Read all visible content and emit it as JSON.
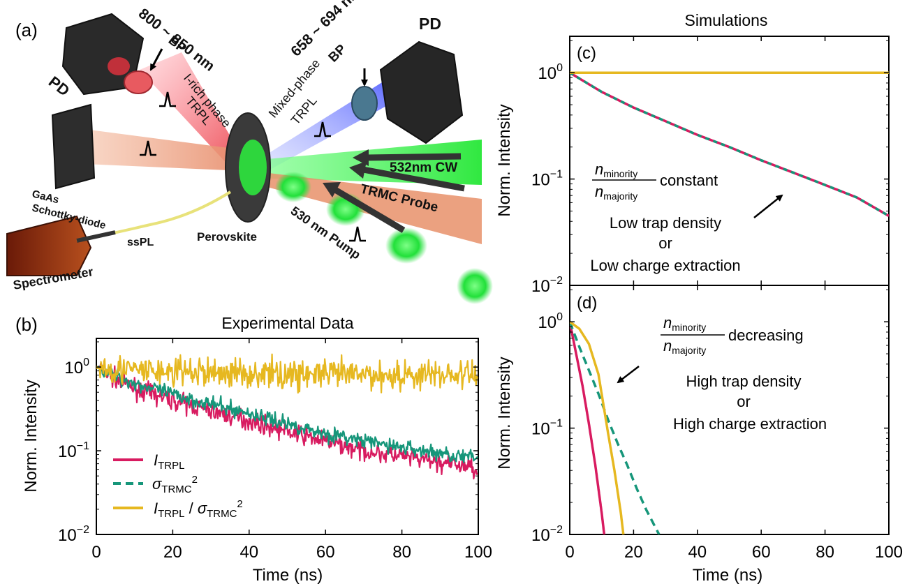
{
  "colors": {
    "trpl": "#d81b60",
    "trmc": "#16967a",
    "ratio": "#e6b820",
    "axis": "#000000",
    "laser_green": "#22e03a",
    "laser_red": "#e8303a",
    "laser_blue": "#3a48e8",
    "probe_orange": "#e8906a"
  },
  "panel_a": {
    "label": "(a)",
    "bp_red": "800 ~ 850 nm",
    "bp_red_sub": "BP",
    "bp_blue": "658 ~ 694 nm",
    "bp_blue_sub": "BP",
    "pd_left": "PD",
    "pd_right": "PD",
    "i_rich_line1": "I-rich phase",
    "i_rich_line2": "TRPL",
    "mixed_line1": "Mixed-phase",
    "mixed_line2": "TRPL",
    "cw": "532nm CW",
    "probe": "TRMC Probe",
    "pump": "530 nm Pump",
    "gaas_line1": "GaAs",
    "gaas_line2": "Schottky-diode",
    "sspl": "ssPL",
    "perovskite": "Perovskite",
    "spectrometer": "Spectrometer"
  },
  "panel_b": {
    "label": "(b)",
    "title": "Experimental Data",
    "xlabel": "Time (ns)",
    "ylabel": "Norm. Intensity",
    "legend": {
      "trpl_main": "I",
      "trpl_sub": "TRPL",
      "trmc_main": "σ",
      "trmc_sub": "TRMC",
      "trmc_sup": "2",
      "ratio_main1": "I",
      "ratio_sub1": "TRPL",
      "ratio_mid": " / ",
      "ratio_main2": "σ",
      "ratio_sub2": "TRMC",
      "ratio_sup": "2"
    }
  },
  "panel_c": {
    "label": "(c)",
    "title": "Simulations",
    "ylabel": "Norm. Intensity",
    "frac_num_main": "n",
    "frac_num_sub": "minority",
    "frac_den_main": "n",
    "frac_den_sub": "majority",
    "frac_word": "constant",
    "line1": "Low trap density",
    "line2": "or",
    "line3": "Low charge extraction"
  },
  "panel_d": {
    "label": "(d)",
    "xlabel": "Time (ns)",
    "ylabel": "Norm. Intensity",
    "frac_num_main": "n",
    "frac_num_sub": "minority",
    "frac_den_main": "n",
    "frac_den_sub": "majority",
    "frac_word": "decreasing",
    "line1": "High trap density",
    "line2": "or",
    "line3": "High charge extraction"
  },
  "axis_ticks": {
    "x": [
      "0",
      "20",
      "40",
      "60",
      "80",
      "100"
    ],
    "y_base": "10",
    "y_exp": [
      "0",
      "−1",
      "−2"
    ]
  },
  "chart_data": [
    {
      "type": "line",
      "panel": "b",
      "title": "Experimental Data",
      "xlabel": "Time (ns)",
      "ylabel": "Norm. Intensity",
      "xlim": [
        0,
        100
      ],
      "ylim": [
        0.01,
        2.2
      ],
      "yscale": "log",
      "legend_position": "lower-left",
      "series": [
        {
          "name": "I_TRPL",
          "x": [
            0,
            1,
            5,
            10,
            20,
            30,
            40,
            50,
            60,
            70,
            80,
            90,
            100
          ],
          "values": [
            1.0,
            0.95,
            0.72,
            0.56,
            0.4,
            0.3,
            0.23,
            0.17,
            0.13,
            0.1,
            0.085,
            0.072,
            0.062
          ]
        },
        {
          "name": "σ_TRMC^2",
          "x": [
            0,
            1,
            5,
            10,
            20,
            30,
            40,
            50,
            60,
            70,
            80,
            90,
            100
          ],
          "values": [
            1.0,
            0.96,
            0.78,
            0.64,
            0.47,
            0.36,
            0.28,
            0.21,
            0.16,
            0.13,
            0.11,
            0.093,
            0.08
          ]
        },
        {
          "name": "I_TRPL / σ_TRMC^2",
          "x": [
            0,
            1,
            10,
            20,
            30,
            40,
            50,
            60,
            70,
            80,
            90,
            100
          ],
          "values": [
            1.0,
            1.0,
            0.9,
            0.87,
            0.86,
            0.84,
            0.82,
            0.82,
            0.8,
            0.8,
            0.82,
            0.8
          ]
        }
      ]
    },
    {
      "type": "line",
      "panel": "c",
      "title": "Simulations",
      "ylabel": "Norm. Intensity",
      "xlim": [
        0,
        100
      ],
      "ylim": [
        0.01,
        2.2
      ],
      "yscale": "log",
      "series": [
        {
          "name": "I_TRPL",
          "x": [
            0,
            10,
            20,
            30,
            40,
            50,
            60,
            70,
            80,
            90,
            100
          ],
          "values": [
            1.0,
            0.66,
            0.47,
            0.35,
            0.26,
            0.2,
            0.15,
            0.115,
            0.088,
            0.067,
            0.045
          ]
        },
        {
          "name": "σ_TRMC^2",
          "x": [
            0,
            10,
            20,
            30,
            40,
            50,
            60,
            70,
            80,
            90,
            100
          ],
          "values": [
            1.0,
            0.66,
            0.47,
            0.35,
            0.26,
            0.2,
            0.15,
            0.115,
            0.088,
            0.067,
            0.045
          ]
        },
        {
          "name": "I_TRPL / σ_TRMC^2",
          "x": [
            0,
            100
          ],
          "values": [
            1.0,
            1.0
          ]
        }
      ]
    },
    {
      "type": "line",
      "panel": "d",
      "xlabel": "Time (ns)",
      "ylabel": "Norm. Intensity",
      "xlim": [
        0,
        100
      ],
      "ylim": [
        0.01,
        2.2
      ],
      "yscale": "log",
      "series": [
        {
          "name": "I_TRPL",
          "x": [
            0,
            2,
            4,
            6,
            8,
            10,
            10.8
          ],
          "values": [
            1.0,
            0.5,
            0.25,
            0.11,
            0.045,
            0.016,
            0.01
          ]
        },
        {
          "name": "σ_TRMC^2",
          "x": [
            0,
            3,
            6,
            9,
            12,
            15,
            18,
            21,
            24,
            28
          ],
          "values": [
            1.0,
            0.58,
            0.35,
            0.21,
            0.12,
            0.072,
            0.045,
            0.027,
            0.017,
            0.01
          ]
        },
        {
          "name": "I_TRPL / σ_TRMC^2",
          "x": [
            0,
            3,
            6,
            9,
            12,
            14,
            16,
            16.8
          ],
          "values": [
            1.0,
            0.86,
            0.62,
            0.32,
            0.09,
            0.04,
            0.016,
            0.01
          ]
        }
      ]
    }
  ]
}
